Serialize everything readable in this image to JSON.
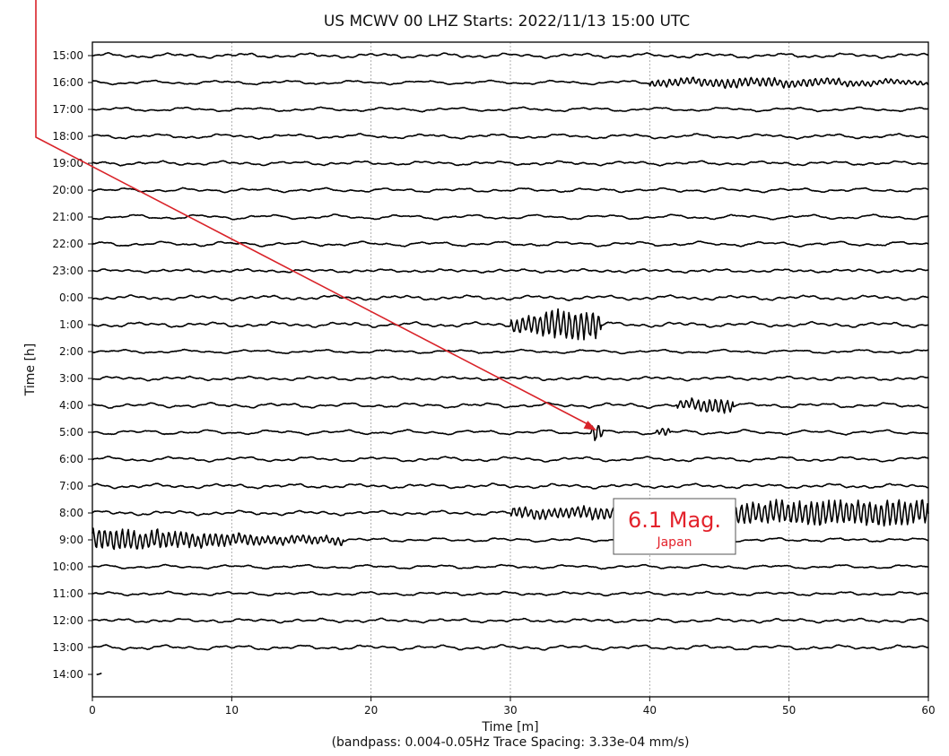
{
  "chart_data": {
    "type": "line",
    "title": "US MCWV 00 LHZ  Starts: 2022/11/13 15:00 UTC",
    "xlabel": "Time [m]",
    "xlabel_note": "(bandpass: 0.004-0.05Hz  Trace Spacing: 3.33e-04 mm/s)",
    "ylabel": "Time [h]",
    "xlim": [
      0,
      60
    ],
    "x_ticks": [
      0,
      10,
      20,
      30,
      40,
      50,
      60
    ],
    "x_grid": true,
    "hour_labels": [
      "15:00",
      "16:00",
      "17:00",
      "18:00",
      "19:00",
      "20:00",
      "21:00",
      "22:00",
      "23:00",
      "0:00",
      "1:00",
      "2:00",
      "3:00",
      "4:00",
      "5:00",
      "6:00",
      "7:00",
      "8:00",
      "9:00",
      "10:00",
      "11:00",
      "12:00",
      "13:00",
      "14:00"
    ],
    "trace_color": "#000000",
    "bursts": [
      {
        "hour": "16:00",
        "start_min": 40,
        "end_min": 60,
        "peak_min": 47.5,
        "strength": 0.45
      },
      {
        "hour": "1:00",
        "start_min": 30,
        "end_min": 36.5,
        "peak_min": 34.5,
        "strength": 1.6
      },
      {
        "hour": "4:00",
        "start_min": 42,
        "end_min": 46,
        "peak_min": 44.5,
        "strength": 0.8
      },
      {
        "hour": "5:00",
        "start_min": 35.8,
        "end_min": 36.6,
        "peak_min": 36.2,
        "strength": 1.0
      },
      {
        "hour": "5:00",
        "start_min": 40.5,
        "end_min": 41.5,
        "peak_min": 41,
        "strength": 0.4
      },
      {
        "hour": "8:00",
        "start_min": 30,
        "end_min": 60,
        "peak_min": 55,
        "strength": 1.3
      },
      {
        "hour": "9:00",
        "start_min": 0,
        "end_min": 18,
        "peak_min": 1,
        "strength": 1.1
      }
    ],
    "last_trace_end_min": 0.7
  },
  "annotation": {
    "magnitude": "6.1 Mag.",
    "location": "Japan",
    "color": "#e3222b",
    "arrow_target": {
      "hour": "5:00",
      "minute": 36.2
    }
  }
}
